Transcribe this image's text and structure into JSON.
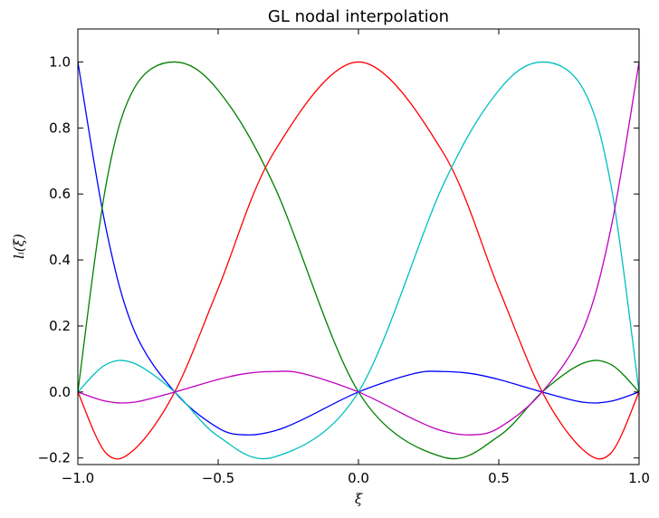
{
  "chart_data": {
    "type": "line",
    "title": "GL nodal interpolation",
    "xlabel": "ξ",
    "ylabel": "l_i(ξ)",
    "ylabel_display": "lᵢ(ξ)",
    "xlim": [
      -1.0,
      1.0
    ],
    "ylim": [
      -0.22,
      1.1
    ],
    "xticks": [
      -1.0,
      -0.5,
      0.0,
      0.5,
      1.0
    ],
    "xtick_labels": [
      "−1.0",
      "−0.5",
      "0.0",
      "0.5",
      "1.0"
    ],
    "yticks": [
      -0.2,
      0.0,
      0.2,
      0.4,
      0.6,
      0.8,
      1.0
    ],
    "ytick_labels": [
      "−0.2",
      "0.0",
      "0.2",
      "0.4",
      "0.6",
      "0.8",
      "1.0"
    ],
    "grid": false,
    "legend": "none",
    "nodes": [
      -1.0,
      -0.6547,
      0.0,
      0.6547,
      1.0
    ],
    "series": [
      {
        "color": "#0000ff",
        "x": [
          -1.0,
          -0.9,
          -0.8,
          -0.6547,
          -0.5,
          -0.4,
          -0.3,
          -0.2,
          0.0,
          0.2,
          0.3,
          0.4,
          0.5,
          0.6547,
          0.8,
          0.9,
          1.0
        ],
        "y": [
          1.0,
          0.497,
          0.188,
          0.0,
          -0.109,
          -0.13,
          -0.118,
          -0.084,
          0.0,
          0.056,
          0.062,
          0.056,
          0.038,
          0.0,
          -0.031,
          -0.028,
          0.0
        ]
      },
      {
        "color": "#008000",
        "x": [
          -1.0,
          -0.9,
          -0.8,
          -0.6547,
          -0.5,
          -0.3,
          0.0,
          0.3,
          0.5,
          0.6547,
          0.8,
          0.9,
          1.0
        ],
        "y": [
          0.0,
          0.626,
          0.919,
          1.0,
          0.914,
          0.624,
          0.0,
          -0.197,
          -0.134,
          0.0,
          0.087,
          0.083,
          0.0
        ]
      },
      {
        "color": "#ff0000",
        "x": [
          -1.0,
          -0.9,
          -0.8,
          -0.6547,
          -0.5,
          -0.3,
          0.0,
          0.3,
          0.5,
          0.6547,
          0.8,
          0.9,
          1.0
        ],
        "y": [
          0.0,
          -0.185,
          -0.175,
          0.0,
          0.313,
          0.728,
          1.0,
          0.728,
          0.313,
          0.0,
          -0.175,
          -0.185,
          0.0
        ]
      },
      {
        "color": "#00bfbf",
        "x": [
          -1.0,
          -0.9,
          -0.8,
          -0.6547,
          -0.5,
          -0.3,
          0.0,
          0.3,
          0.5,
          0.6547,
          0.8,
          0.9,
          1.0
        ],
        "y": [
          0.0,
          0.083,
          0.087,
          0.0,
          -0.134,
          -0.197,
          0.0,
          0.624,
          0.914,
          1.0,
          0.919,
          0.626,
          0.0
        ]
      },
      {
        "color": "#bf00bf",
        "x": [
          -1.0,
          -0.9,
          -0.8,
          -0.6547,
          -0.5,
          -0.4,
          -0.3,
          -0.2,
          0.0,
          0.2,
          0.3,
          0.4,
          0.5,
          0.6547,
          0.8,
          0.9,
          1.0
        ],
        "y": [
          0.0,
          -0.028,
          -0.031,
          0.0,
          0.038,
          0.056,
          0.062,
          0.056,
          0.0,
          -0.084,
          -0.118,
          -0.13,
          -0.109,
          0.0,
          0.188,
          0.497,
          1.0
        ]
      }
    ]
  }
}
